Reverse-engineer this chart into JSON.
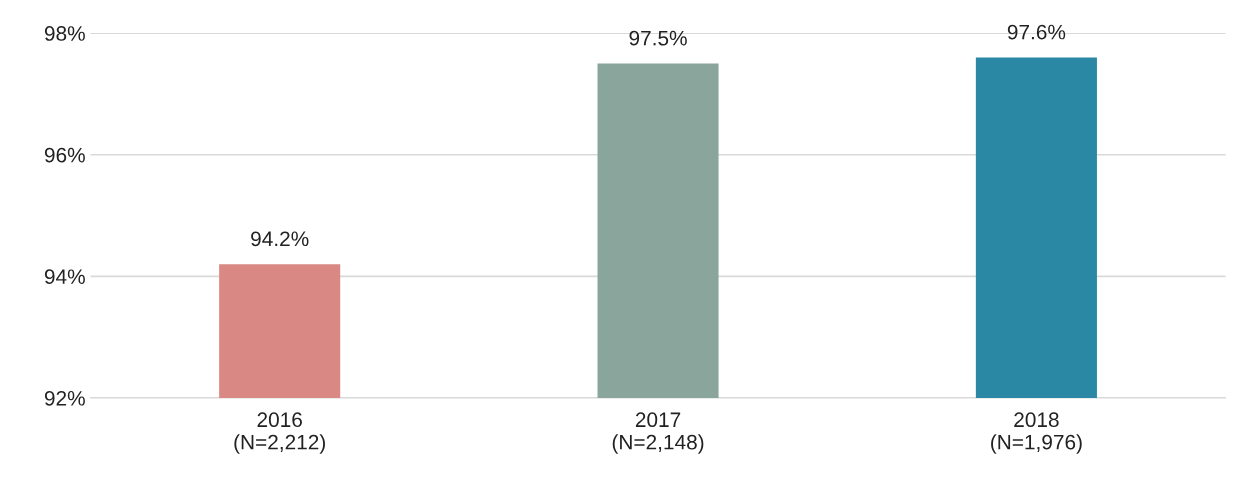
{
  "chart_data": {
    "type": "bar",
    "categories": [
      "2016\n(N=2,212)",
      "2017\n(N=2,148)",
      "2018\n(N=1,976)"
    ],
    "values": [
      94.2,
      97.5,
      97.6
    ],
    "colors": [
      "#d98883",
      "#8aa69c",
      "#2a88a5"
    ],
    "value_labels": [
      "94.2%",
      "97.5%",
      "97.6%"
    ],
    "ylim": [
      92,
      98
    ],
    "yticks": [
      {
        "value": 92,
        "label": "92%"
      },
      {
        "value": 94,
        "label": "94%"
      },
      {
        "value": 96,
        "label": "96%"
      },
      {
        "value": 98,
        "label": "98%"
      }
    ],
    "grid": "y"
  }
}
